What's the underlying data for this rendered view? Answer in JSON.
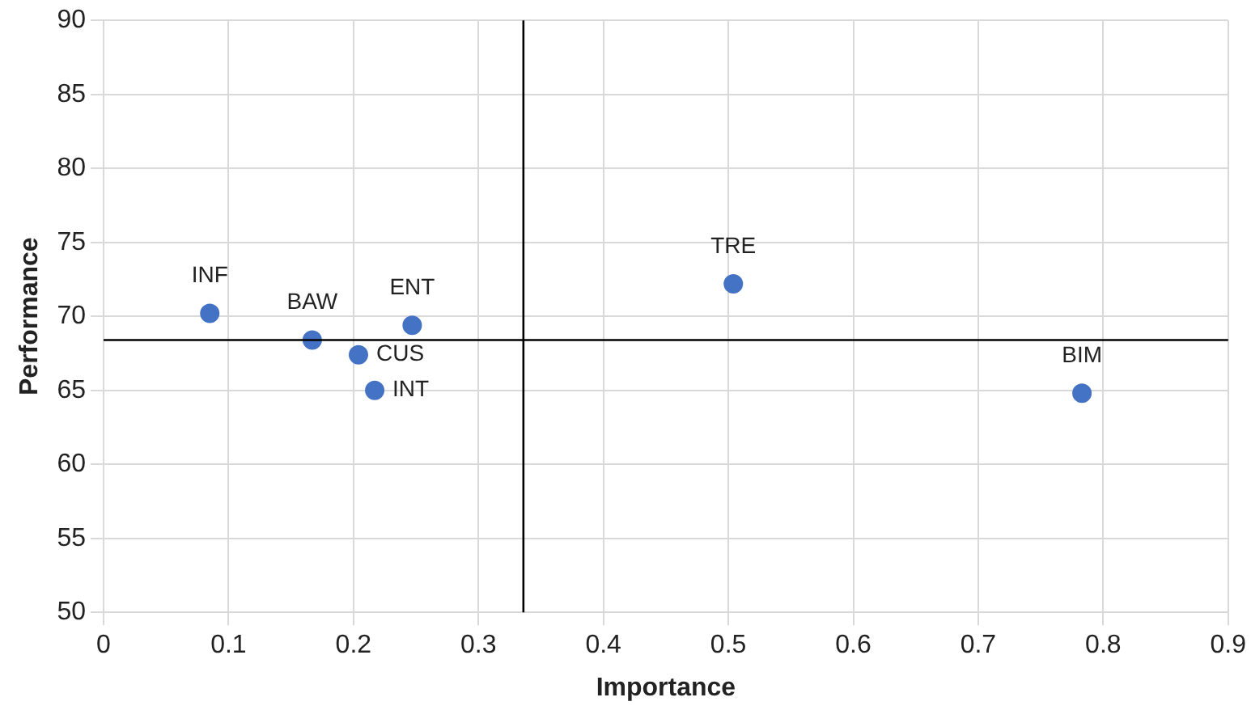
{
  "chart_data": {
    "type": "scatter",
    "xlabel": "Importance",
    "ylabel": "Performance",
    "x": [
      0.085,
      0.167,
      0.247,
      0.204,
      0.217,
      0.504,
      0.783
    ],
    "values": [
      70.2,
      68.4,
      69.4,
      67.4,
      65.0,
      72.2,
      64.8
    ],
    "color": "#4472c4",
    "marker": "circle",
    "xlim": [
      0,
      0.9
    ],
    "xticks": [
      0,
      0.1,
      0.2,
      0.3,
      0.4,
      0.5,
      0.6,
      0.7,
      0.8,
      0.9
    ],
    "ylim": [
      50,
      90
    ],
    "yticks": [
      50,
      55,
      60,
      65,
      70,
      75,
      80,
      85,
      90
    ],
    "grid": true,
    "legend": false,
    "ref_lines": [
      {
        "axis": "x",
        "value": 0.336,
        "color": "#000000"
      },
      {
        "axis": "y",
        "value": 68.4,
        "color": "#000000"
      }
    ],
    "annotations": [
      {
        "text": "INF",
        "x": 0.085,
        "y": 70.2
      },
      {
        "text": "BAW",
        "x": 0.167,
        "y": 68.4
      },
      {
        "text": "ENT",
        "x": 0.247,
        "y": 69.4
      },
      {
        "text": "CUS",
        "x": 0.204,
        "y": 67.4
      },
      {
        "text": "INT",
        "x": 0.217,
        "y": 65.0
      },
      {
        "text": "TRE",
        "x": 0.504,
        "y": 72.2
      },
      {
        "text": "BIM",
        "x": 0.783,
        "y": 64.8
      }
    ]
  }
}
